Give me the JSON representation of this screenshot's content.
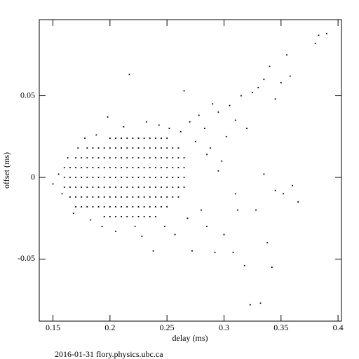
{
  "chart_data": {
    "type": "scatter",
    "xlabel": "delay (ms)",
    "ylabel": "offset (ms)",
    "footer": "2016-01-31 flory.physics.ubc.ca",
    "xlim": [
      0.138,
      0.403
    ],
    "ylim": [
      -0.088,
      0.0966
    ],
    "xticks": [
      0.15,
      0.2,
      0.25,
      0.3,
      0.35,
      0.4
    ],
    "yticks": [
      -0.05,
      0,
      0.05
    ],
    "color": "#000000",
    "x": [
      0.16,
      0.16,
      0.16,
      0.165,
      0.165,
      0.165,
      0.165,
      0.17,
      0.17,
      0.17,
      0.17,
      0.17,
      0.17,
      0.175,
      0.175,
      0.175,
      0.175,
      0.175,
      0.175,
      0.18,
      0.18,
      0.18,
      0.18,
      0.18,
      0.18,
      0.18,
      0.185,
      0.185,
      0.185,
      0.185,
      0.185,
      0.185,
      0.185,
      0.19,
      0.19,
      0.19,
      0.19,
      0.19,
      0.19,
      0.19,
      0.195,
      0.195,
      0.195,
      0.195,
      0.195,
      0.195,
      0.195,
      0.195,
      0.2,
      0.2,
      0.2,
      0.2,
      0.2,
      0.2,
      0.2,
      0.2,
      0.2,
      0.205,
      0.205,
      0.205,
      0.205,
      0.205,
      0.205,
      0.205,
      0.205,
      0.205,
      0.21,
      0.21,
      0.21,
      0.21,
      0.21,
      0.21,
      0.21,
      0.21,
      0.21,
      0.215,
      0.215,
      0.215,
      0.215,
      0.215,
      0.215,
      0.215,
      0.215,
      0.215,
      0.22,
      0.22,
      0.22,
      0.22,
      0.22,
      0.22,
      0.22,
      0.22,
      0.22,
      0.225,
      0.225,
      0.225,
      0.225,
      0.225,
      0.225,
      0.225,
      0.225,
      0.225,
      0.23,
      0.23,
      0.23,
      0.23,
      0.23,
      0.23,
      0.23,
      0.23,
      0.23,
      0.235,
      0.235,
      0.235,
      0.235,
      0.235,
      0.235,
      0.235,
      0.235,
      0.235,
      0.24,
      0.24,
      0.24,
      0.24,
      0.24,
      0.24,
      0.24,
      0.24,
      0.24,
      0.245,
      0.245,
      0.245,
      0.245,
      0.245,
      0.245,
      0.245,
      0.245,
      0.25,
      0.25,
      0.25,
      0.25,
      0.25,
      0.25,
      0.25,
      0.25,
      0.255,
      0.255,
      0.255,
      0.255,
      0.255,
      0.255,
      0.26,
      0.26,
      0.26,
      0.26,
      0.26,
      0.26,
      0.265,
      0.265,
      0.265,
      0.265,
      0.15,
      0.155,
      0.158,
      0.163,
      0.168,
      0.172,
      0.178,
      0.183,
      0.188,
      0.193,
      0.198,
      0.205,
      0.212,
      0.217,
      0.222,
      0.228,
      0.232,
      0.238,
      0.243,
      0.248,
      0.252,
      0.257,
      0.262,
      0.265,
      0.268,
      0.27,
      0.272,
      0.275,
      0.278,
      0.28,
      0.283,
      0.285,
      0.288,
      0.29,
      0.292,
      0.295,
      0.298,
      0.3,
      0.302,
      0.305,
      0.308,
      0.31,
      0.312,
      0.315,
      0.318,
      0.32,
      0.323,
      0.325,
      0.328,
      0.33,
      0.332,
      0.335,
      0.338,
      0.34,
      0.342,
      0.345,
      0.35,
      0.352,
      0.355,
      0.358,
      0.36,
      0.365,
      0.38,
      0.383,
      0.39,
      0.345,
      0.335,
      0.295,
      0.31,
      0.285
    ],
    "values": [
      -0.006,
      0,
      0.006,
      -0.012,
      -0.006,
      0,
      0.006,
      -0.018,
      -0.012,
      -0.006,
      0,
      0.006,
      0.012,
      -0.018,
      -0.012,
      -0.006,
      0,
      0.006,
      0.012,
      -0.018,
      -0.012,
      -0.006,
      0,
      0.006,
      0.012,
      0.018,
      -0.018,
      -0.012,
      -0.006,
      0,
      0.006,
      0.012,
      0.018,
      -0.018,
      -0.012,
      -0.006,
      0,
      0.006,
      0.012,
      0.018,
      -0.024,
      -0.018,
      -0.012,
      -0.006,
      0,
      0.006,
      0.012,
      0.018,
      -0.024,
      -0.018,
      -0.012,
      -0.006,
      0,
      0.006,
      0.012,
      0.018,
      0.024,
      -0.024,
      -0.018,
      -0.012,
      -0.006,
      0,
      0.006,
      0.012,
      0.018,
      0.024,
      -0.024,
      -0.018,
      -0.012,
      -0.006,
      0,
      0.006,
      0.012,
      0.018,
      0.024,
      -0.024,
      -0.018,
      -0.012,
      -0.006,
      0,
      0.006,
      0.012,
      0.018,
      0.024,
      -0.024,
      -0.018,
      -0.012,
      -0.006,
      0,
      0.006,
      0.012,
      0.018,
      0.024,
      -0.024,
      -0.018,
      -0.012,
      -0.006,
      0,
      0.006,
      0.012,
      0.018,
      0.024,
      -0.024,
      -0.018,
      -0.012,
      -0.006,
      0,
      0.006,
      0.012,
      0.018,
      0.024,
      -0.024,
      -0.018,
      -0.012,
      -0.006,
      0,
      0.006,
      0.012,
      0.018,
      0.024,
      -0.024,
      -0.018,
      -0.012,
      -0.006,
      0,
      0.006,
      0.012,
      0.018,
      0.024,
      -0.018,
      -0.012,
      -0.006,
      0,
      0.006,
      0.012,
      0.018,
      0.024,
      -0.018,
      -0.012,
      -0.006,
      0,
      0.006,
      0.012,
      0.018,
      0.024,
      -0.012,
      -0.006,
      0,
      0.006,
      0.012,
      0.018,
      -0.012,
      -0.006,
      0,
      0.006,
      0.012,
      0.018,
      -0.006,
      0,
      0.006,
      0.012,
      -0.004,
      0.002,
      -0.01,
      0.012,
      -0.022,
      0.018,
      0.024,
      -0.026,
      0.026,
      -0.03,
      0.037,
      -0.033,
      0.031,
      0.063,
      -0.03,
      -0.036,
      0.034,
      -0.045,
      0.032,
      -0.03,
      0.03,
      -0.035,
      0.028,
      0.053,
      -0.025,
      0.034,
      -0.045,
      0.022,
      0.038,
      -0.02,
      0.03,
      -0.03,
      0.018,
      0.045,
      -0.046,
      0.04,
      0.01,
      -0.035,
      0.025,
      0.044,
      -0.046,
      0.035,
      -0.02,
      0.05,
      -0.054,
      0.03,
      -0.078,
      0.052,
      -0.02,
      0.055,
      -0.077,
      0.06,
      -0.04,
      0.068,
      -0.055,
      0.048,
      0.058,
      -0.01,
      0.075,
      0.062,
      -0.005,
      -0.015,
      0.082,
      0.087,
      0.088,
      -0.008,
      0.002,
      0.004,
      -0.01,
      0.014
    ]
  }
}
